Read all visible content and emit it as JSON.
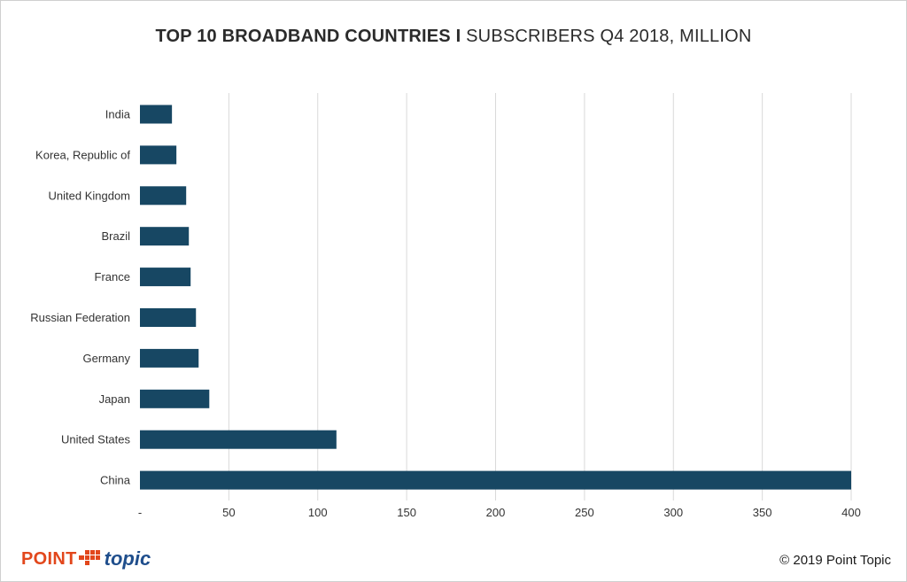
{
  "header": {
    "title_bold": "TOP 10 BROADBAND COUNTRIES I",
    "title_rest": " SUBSCRIBERS Q4 2018, MILLION"
  },
  "logo": {
    "point": "POINT",
    "topic": "topic",
    "colors": {
      "point": "#e2471c",
      "topic": "#1f4e8c"
    }
  },
  "footer": {
    "copyright": "© 2019 Point Topic"
  },
  "chart_data": {
    "type": "bar",
    "orientation": "horizontal",
    "categories": [
      "India",
      "Korea, Republic of",
      "United Kingdom",
      "Brazil",
      "France",
      "Russian Federation",
      "Germany",
      "Japan",
      "United States",
      "China"
    ],
    "values": [
      18,
      20.5,
      26,
      27.5,
      28.5,
      31.5,
      33,
      39,
      110.5,
      400
    ],
    "xlim": [
      0,
      400
    ],
    "x_ticks": [
      0,
      50,
      100,
      150,
      200,
      250,
      300,
      350,
      400
    ],
    "x_tick_labels": [
      "-",
      "50",
      "100",
      "150",
      "200",
      "250",
      "300",
      "350",
      "400"
    ],
    "grid": "vertical",
    "bar_color": "#174763",
    "gridline_color": "#d9d9d9"
  }
}
